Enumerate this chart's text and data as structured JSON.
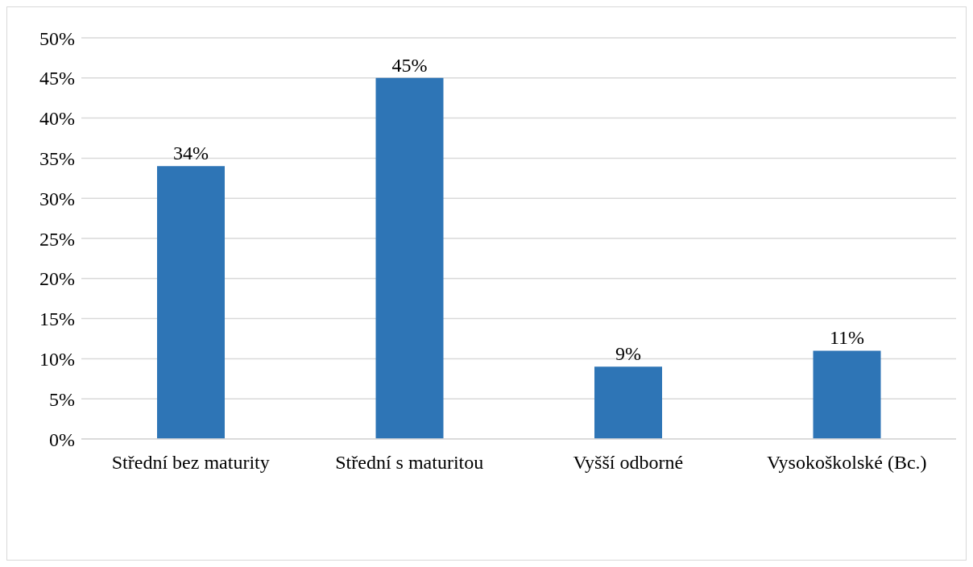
{
  "chart_data": {
    "type": "bar",
    "categories": [
      "Střední bez maturity",
      "Střední s maturitou",
      "Vyšší odborné",
      "Vysokoškolské (Bc.)"
    ],
    "values": [
      34,
      45,
      9,
      11
    ],
    "value_labels": [
      "34%",
      "45%",
      "9%",
      "11%"
    ],
    "color": "#2e75b6",
    "ylim": [
      0,
      50
    ],
    "yticks": [
      {
        "value": 0,
        "label": "0%"
      },
      {
        "value": 5,
        "label": "5%"
      },
      {
        "value": 10,
        "label": "10%"
      },
      {
        "value": 15,
        "label": "15%"
      },
      {
        "value": 20,
        "label": "20%"
      },
      {
        "value": 25,
        "label": "25%"
      },
      {
        "value": 30,
        "label": "30%"
      },
      {
        "value": 35,
        "label": "35%"
      },
      {
        "value": 40,
        "label": "40%"
      },
      {
        "value": 45,
        "label": "45%"
      },
      {
        "value": 50,
        "label": "50%"
      }
    ],
    "grid": "y"
  }
}
